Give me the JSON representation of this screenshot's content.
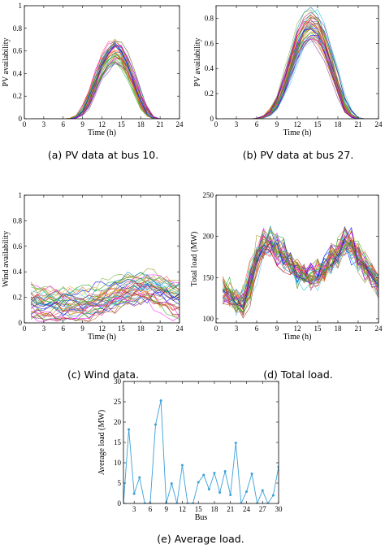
{
  "chart_data": [
    {
      "id": "pv10",
      "type": "line",
      "caption": "(a) PV data at bus 10.",
      "xlabel": "Time (h)",
      "ylabel": "PV availability",
      "xlim": [
        0,
        24
      ],
      "ylim": [
        0,
        1
      ],
      "xticks": [
        0,
        3,
        6,
        9,
        12,
        15,
        18,
        21,
        24
      ],
      "yticks": [
        0,
        0.2,
        0.4,
        0.6,
        0.8,
        1
      ],
      "ytick_labels": [
        "0",
        "0.2",
        "0.4",
        "0.6",
        "0.8",
        "1"
      ],
      "x": [
        1,
        2,
        3,
        4,
        5,
        6,
        7,
        8,
        9,
        10,
        11,
        12,
        13,
        14,
        15,
        16,
        17,
        18,
        19,
        20,
        21,
        22,
        23,
        24
      ],
      "series_count": 40,
      "profile_mean": [
        0,
        0,
        0,
        0,
        0,
        0,
        0,
        0.01,
        0.05,
        0.17,
        0.32,
        0.46,
        0.55,
        0.6,
        0.56,
        0.45,
        0.3,
        0.15,
        0.04,
        0,
        0,
        0,
        0,
        0
      ],
      "grid": false
    },
    {
      "id": "pv27",
      "type": "line",
      "caption": "(b) PV data at bus 27.",
      "xlabel": "Time (h)",
      "ylabel": "PV availability",
      "xlim": [
        0,
        24
      ],
      "ylim": [
        0,
        0.9
      ],
      "xticks": [
        0,
        3,
        6,
        9,
        12,
        15,
        18,
        21,
        24
      ],
      "yticks": [
        0,
        0.2,
        0.4,
        0.6,
        0.8
      ],
      "ytick_labels": [
        "0",
        "0.2",
        "0.4",
        "0.6",
        "0.8"
      ],
      "x": [
        1,
        2,
        3,
        4,
        5,
        6,
        7,
        8,
        9,
        10,
        11,
        12,
        13,
        14,
        15,
        16,
        17,
        18,
        19,
        20,
        21,
        22,
        23,
        24
      ],
      "series_count": 40,
      "profile_mean": [
        0,
        0,
        0,
        0,
        0,
        0,
        0.01,
        0.04,
        0.12,
        0.25,
        0.42,
        0.6,
        0.72,
        0.77,
        0.74,
        0.62,
        0.45,
        0.27,
        0.1,
        0.02,
        0,
        0,
        0,
        0
      ],
      "grid": false
    },
    {
      "id": "wind",
      "type": "line",
      "caption": "(c) Wind data.",
      "xlabel": "Time (h)",
      "ylabel": "Wind availability",
      "xlim": [
        0,
        24
      ],
      "ylim": [
        0,
        1
      ],
      "xticks": [
        0,
        3,
        6,
        9,
        12,
        15,
        18,
        21,
        24
      ],
      "yticks": [
        0,
        0.2,
        0.4,
        0.6,
        0.8,
        1
      ],
      "ytick_labels": [
        "0",
        "0.2",
        "0.4",
        "0.6",
        "0.8",
        "1"
      ],
      "x": [
        1,
        2,
        3,
        4,
        5,
        6,
        7,
        8,
        9,
        10,
        11,
        12,
        13,
        14,
        15,
        16,
        17,
        18,
        19,
        20,
        21,
        22,
        23,
        24
      ],
      "series_count": 40,
      "profile_mean": [
        0.17,
        0.16,
        0.15,
        0.15,
        0.14,
        0.14,
        0.14,
        0.14,
        0.14,
        0.15,
        0.16,
        0.18,
        0.2,
        0.22,
        0.24,
        0.26,
        0.27,
        0.28,
        0.28,
        0.27,
        0.25,
        0.23,
        0.21,
        0.2
      ],
      "grid": false
    },
    {
      "id": "load",
      "type": "line",
      "caption": "(d) Total load.",
      "xlabel": "Time (h)",
      "ylabel": "Total load (MW)",
      "xlim": [
        0,
        24
      ],
      "ylim": [
        95,
        250
      ],
      "xticks": [
        0,
        3,
        6,
        9,
        12,
        15,
        18,
        21,
        24
      ],
      "yticks": [
        100,
        150,
        200,
        250
      ],
      "ytick_labels": [
        "100",
        "150",
        "200",
        "250"
      ],
      "x": [
        1,
        2,
        3,
        4,
        5,
        6,
        7,
        8,
        9,
        10,
        11,
        12,
        13,
        14,
        15,
        16,
        17,
        18,
        19,
        20,
        21,
        22,
        23,
        24
      ],
      "series_count": 40,
      "profile_mean": [
        140,
        128,
        122,
        118,
        140,
        175,
        190,
        195,
        188,
        178,
        165,
        158,
        152,
        150,
        152,
        160,
        170,
        180,
        195,
        190,
        175,
        165,
        155,
        140
      ],
      "grid": false
    },
    {
      "id": "avgload",
      "type": "line",
      "caption": "(e) Average load.",
      "xlabel": "Bus",
      "ylabel": "Average load (MW)",
      "xlim": [
        1,
        30
      ],
      "ylim": [
        0,
        30
      ],
      "xticks": [
        3,
        6,
        9,
        12,
        15,
        18,
        21,
        24,
        27,
        30
      ],
      "yticks": [
        0,
        5,
        10,
        15,
        20,
        25,
        30
      ],
      "ytick_labels": [
        "0",
        "5",
        "10",
        "15",
        "20",
        "25",
        "30"
      ],
      "markers": true,
      "color": "#3aa0d8",
      "x": [
        1,
        2,
        3,
        4,
        5,
        6,
        7,
        8,
        9,
        10,
        11,
        12,
        13,
        14,
        15,
        16,
        17,
        18,
        19,
        20,
        21,
        22,
        23,
        24,
        25,
        26,
        27,
        28,
        29,
        30
      ],
      "values": [
        0,
        18.2,
        2.4,
        6.4,
        0,
        0,
        19.4,
        25.3,
        0,
        4.9,
        0,
        9.4,
        0,
        0,
        5.2,
        7,
        3.5,
        7.5,
        2.7,
        7.9,
        2.1,
        14.9,
        0,
        2.9,
        7.3,
        0,
        3.2,
        0,
        2,
        9
      ],
      "grid": false
    }
  ]
}
